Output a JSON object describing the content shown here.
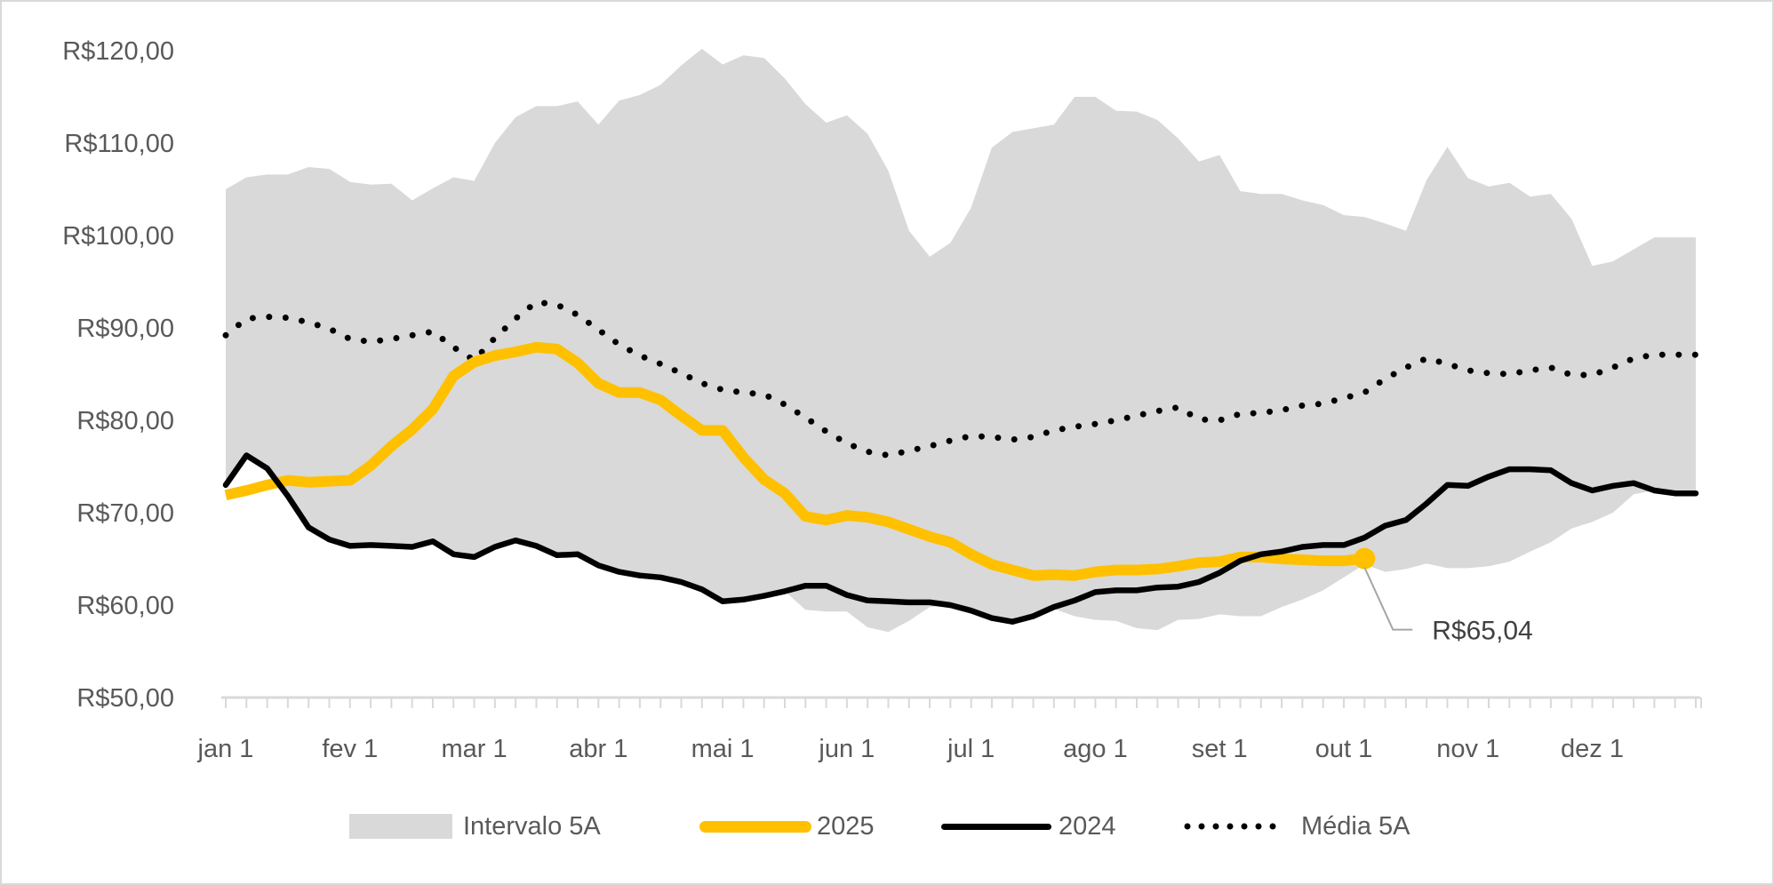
{
  "chart_data": {
    "type": "line",
    "title": "",
    "xlabel": "",
    "ylabel": "",
    "ylim": [
      50,
      120
    ],
    "y_ticks": [
      50,
      60,
      70,
      80,
      90,
      100,
      110,
      120
    ],
    "y_tick_labels": [
      "R$50,00",
      "R$60,00",
      "R$70,00",
      "R$80,00",
      "R$90,00",
      "R$100,00",
      "R$110,00",
      "R$120,00"
    ],
    "x_points": 72,
    "x_tick_every": 6,
    "x_tick_labels": [
      "jan 1",
      "fev 1",
      "mar 1",
      "abr 1",
      "mai 1",
      "jun 1",
      "jul 1",
      "ago 1",
      "set 1",
      "out 1",
      "nov 1",
      "dez 1"
    ],
    "grid": false,
    "legend_position": "bottom",
    "colors": {
      "band": "#d9d9d9",
      "s2025": "#ffc000",
      "s2024": "#000000",
      "media": "#000000",
      "axis": "#d9d9d9",
      "text": "#595959",
      "leader": "#a6a6a6"
    },
    "band": {
      "name": "Intervalo 5A",
      "upper": [
        105,
        106.3,
        106.6,
        106.6,
        107.4,
        107.2,
        105.8,
        105.5,
        105.6,
        103.8,
        105.1,
        106.3,
        105.9,
        110,
        112.8,
        114,
        114,
        114.5,
        112,
        114.6,
        115.2,
        116.3,
        118.4,
        120.2,
        118.5,
        119.5,
        119.2,
        117,
        114.2,
        112.2,
        113,
        111,
        107,
        100.5,
        97.7,
        99.2,
        103,
        109.5,
        111.2,
        111.6,
        112,
        115,
        115,
        113.5,
        113.4,
        112.5,
        110.5,
        108,
        108.7,
        104.8,
        104.5,
        104.5,
        103.8,
        103.3,
        102.2,
        102,
        101.3,
        100.5,
        106,
        109.6,
        106.2,
        105.3,
        105.7,
        104.2,
        104.5,
        101.8,
        96.7,
        97.2,
        98.5,
        99.8,
        99.8,
        99.8
      ],
      "lower": [
        73,
        76.2,
        74.8,
        71.8,
        68.4,
        67.1,
        66.4,
        66.5,
        66.4,
        66.3,
        66.9,
        65.5,
        65.2,
        66.3,
        67,
        66.4,
        65.4,
        65.5,
        64.3,
        63.6,
        63.2,
        63,
        62.5,
        61.7,
        60.4,
        60.6,
        61,
        61.5,
        59.5,
        59.3,
        59.3,
        57.6,
        57.1,
        58.3,
        59.8,
        60,
        59.4,
        58.6,
        58.2,
        58.8,
        59.6,
        58.8,
        58.4,
        58.3,
        57.5,
        57.3,
        58.4,
        58.5,
        59,
        58.8,
        58.8,
        59.8,
        60.6,
        61.6,
        63,
        64.4,
        63.6,
        63.9,
        64.5,
        64,
        64,
        64.2,
        64.7,
        65.8,
        66.8,
        68.3,
        69,
        70,
        72,
        72.4,
        72.1,
        72.1
      ]
    },
    "series": [
      {
        "name": "2025",
        "values": [
          71.9,
          72.4,
          73,
          73.5,
          73.3,
          73.4,
          73.5,
          75.1,
          77.2,
          79,
          81.2,
          84.8,
          86.3,
          87,
          87.4,
          87.9,
          87.7,
          86.2,
          84,
          83,
          83,
          82.2,
          80.5,
          78.9,
          78.9,
          76,
          73.6,
          72.1,
          69.6,
          69.2,
          69.7,
          69.5,
          69,
          68.2,
          67.4,
          66.8,
          65.5,
          64.4,
          63.8,
          63.2,
          63.3,
          63.2,
          63.6,
          63.8,
          63.8,
          63.9,
          64.2,
          64.6,
          64.7,
          65.2,
          65.2,
          65,
          64.9,
          64.8,
          64.8,
          65.04
        ]
      },
      {
        "name": "2024",
        "values": [
          73,
          76.2,
          74.8,
          71.8,
          68.4,
          67.1,
          66.4,
          66.5,
          66.4,
          66.3,
          66.9,
          65.5,
          65.2,
          66.3,
          67,
          66.4,
          65.4,
          65.5,
          64.3,
          63.6,
          63.2,
          63,
          62.5,
          61.7,
          60.4,
          60.6,
          61,
          61.5,
          62.1,
          62.1,
          61.1,
          60.5,
          60.4,
          60.3,
          60.3,
          60,
          59.4,
          58.6,
          58.2,
          58.8,
          59.8,
          60.5,
          61.4,
          61.6,
          61.6,
          61.9,
          62,
          62.5,
          63.5,
          64.8,
          65.5,
          65.8,
          66.3,
          66.5,
          66.5,
          67.3,
          68.6,
          69.2,
          71,
          73,
          72.9,
          73.9,
          74.7,
          74.7,
          74.6,
          73.2,
          72.4,
          72.9,
          73.2,
          72.4,
          72.1,
          72.1
        ]
      },
      {
        "name": "Média 5A",
        "values": [
          89.2,
          91,
          91.2,
          91.1,
          90.6,
          89.9,
          88.8,
          88.5,
          88.8,
          89.2,
          89.6,
          87.9,
          86.5,
          88.9,
          91,
          92.8,
          92.5,
          91.4,
          89.8,
          88.2,
          87,
          86.1,
          85.1,
          84,
          83.3,
          83,
          82.8,
          81.7,
          80.3,
          78.8,
          77.5,
          76.6,
          76.2,
          76.7,
          77.2,
          77.8,
          78.3,
          78.2,
          77.9,
          78.2,
          78.9,
          79.3,
          79.6,
          80,
          80.5,
          81,
          81.4,
          80.1,
          80,
          80.7,
          80.8,
          81.1,
          81.6,
          81.8,
          82.4,
          83,
          84.5,
          85.7,
          86.7,
          86.1,
          85.4,
          85.1,
          85,
          85.4,
          85.7,
          84.9,
          84.9,
          85.7,
          86.7,
          87.1,
          87.1,
          87.1
        ]
      }
    ],
    "annotation": {
      "label": "R$65,04",
      "series": "2025",
      "value": 65.04
    }
  },
  "legend": {
    "band": "Intervalo 5A",
    "s2025": "2025",
    "s2024": "2024",
    "media": "Média 5A"
  }
}
